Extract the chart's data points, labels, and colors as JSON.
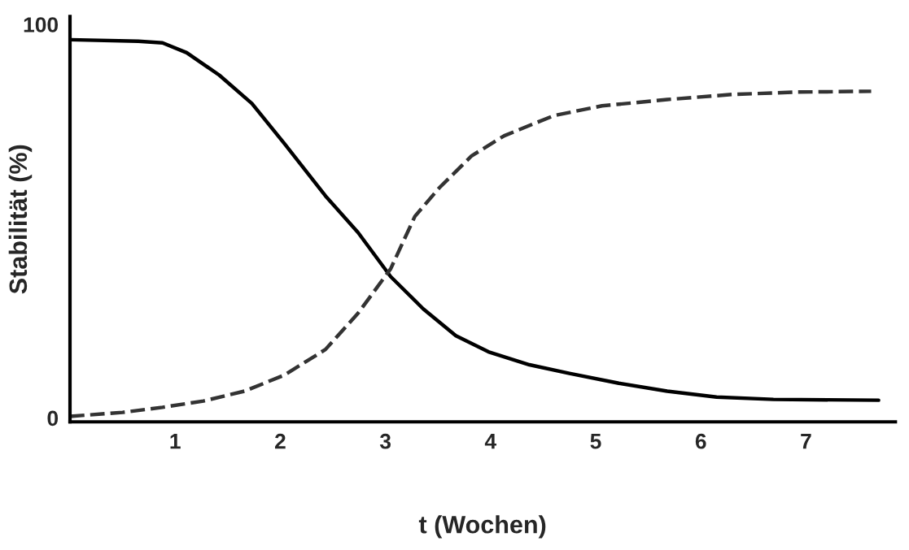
{
  "chart_data": {
    "type": "line",
    "xlabel": "t (Wochen)",
    "ylabel": "Stabilität (%)",
    "xlim": [
      0,
      7.85
    ],
    "ylim": [
      -1,
      102
    ],
    "xticks": [
      1,
      2,
      3,
      4,
      5,
      6,
      7
    ],
    "yticks": [
      0,
      100
    ],
    "grid": false,
    "legend": false,
    "marker": "none",
    "series": [
      {
        "color": "#000000",
        "line_style": "solid",
        "x": [
          0,
          0.65,
          0.88,
          1.11,
          1.42,
          1.73,
          2.04,
          2.43,
          2.74,
          3.05,
          3.36,
          3.67,
          3.98,
          4.37,
          4.75,
          5.22,
          5.68,
          6.15,
          6.69,
          7.69
        ],
        "values": [
          96.1,
          95.7,
          95.3,
          92.8,
          87.1,
          79.9,
          69.7,
          56.4,
          47.1,
          35.9,
          27.7,
          20.9,
          16.8,
          13.5,
          11.3,
          8.8,
          6.8,
          5.3,
          4.7,
          4.5
        ]
      },
      {
        "color": "#333333",
        "line_style": "dashed",
        "x": [
          0,
          0.5,
          0.88,
          1.27,
          1.66,
          2.04,
          2.43,
          2.74,
          3.05,
          3.28,
          3.51,
          3.82,
          4.13,
          4.6,
          5.06,
          5.68,
          6.3,
          6.92,
          7.62
        ],
        "values": [
          0.4,
          1.4,
          2.7,
          4.3,
          6.8,
          10.9,
          17.4,
          26.6,
          37.9,
          51.2,
          58.4,
          66.6,
          71.7,
          76.8,
          79.3,
          80.9,
          82.2,
          82.8,
          83.0
        ]
      }
    ]
  }
}
